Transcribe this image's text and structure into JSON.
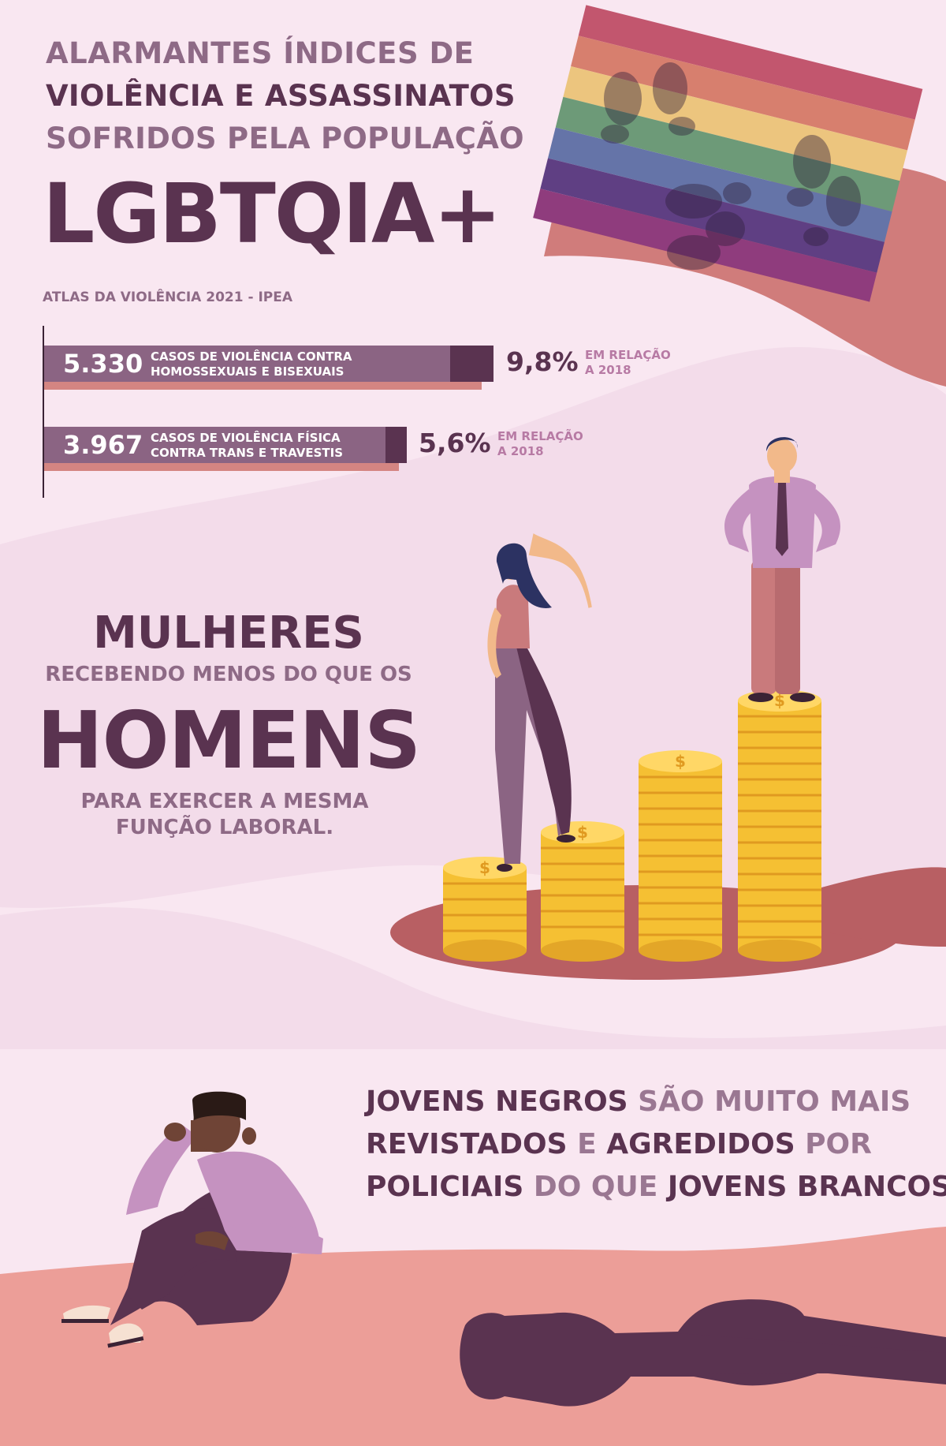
{
  "section_lgbt": {
    "heading_line1": "ALARMANTES ÍNDICES  DE",
    "heading_line2": "VIOLÊNCIA E ASSASSINATOS",
    "heading_line3": "SOFRIDOS PELA POPULAÇÃO",
    "title": "LGBTQIA+",
    "source": "ATLAS DA VIOLÊNCIA 2021 - IPEA",
    "stats": [
      {
        "value": "5.330",
        "label": "CASOS DE VIOLÊNCIA CONTRA\nHOMOSSEXUAIS E BISEXUAIS",
        "change": "9,8%",
        "note": "EM RELAÇÃO\nA 2018"
      },
      {
        "value": "3.967",
        "label": "CASOS DE VIOLÊNCIA FÍSICA\nCONTRA TRANS E TRAVESTIS",
        "change": "5,6%",
        "note": "EM RELAÇÃO\nA 2018"
      }
    ]
  },
  "section_women": {
    "line1": "MULHERES",
    "line2": "RECEBENDO MENOS DO QUE OS",
    "line3": "HOMENS",
    "line4": "PARA EXERCER A MESMA\nFUNÇÃO LABORAL."
  },
  "section_youth": {
    "line1_a": "JOVENS NEGROS",
    "line1_b": " SÃO MUITO MAIS",
    "line2_a": "REVISTADOS",
    "line2_b": " E ",
    "line2_c": "AGREDIDOS",
    "line2_d": " POR",
    "line3_a": "POLICIAIS",
    "line3_b": " DO QUE ",
    "line3_c": "JOVENS BRANCOS"
  },
  "icons": [
    "rainbow-flag-icon",
    "footprints-icon",
    "coin-stack-icon",
    "dollar-coin-icon",
    "man-figure-icon",
    "woman-figure-icon",
    "sitting-youth-icon",
    "police-shadow-icon"
  ],
  "colors": {
    "background": "#f9e7f1",
    "wave": "#f3dcea",
    "dark_plum": "#5a3350",
    "muted_plum": "#8e6a86",
    "bar": "#8b6483",
    "salmon": "#d48582",
    "ground": "#ec9e98",
    "coin": "#f5c033"
  }
}
